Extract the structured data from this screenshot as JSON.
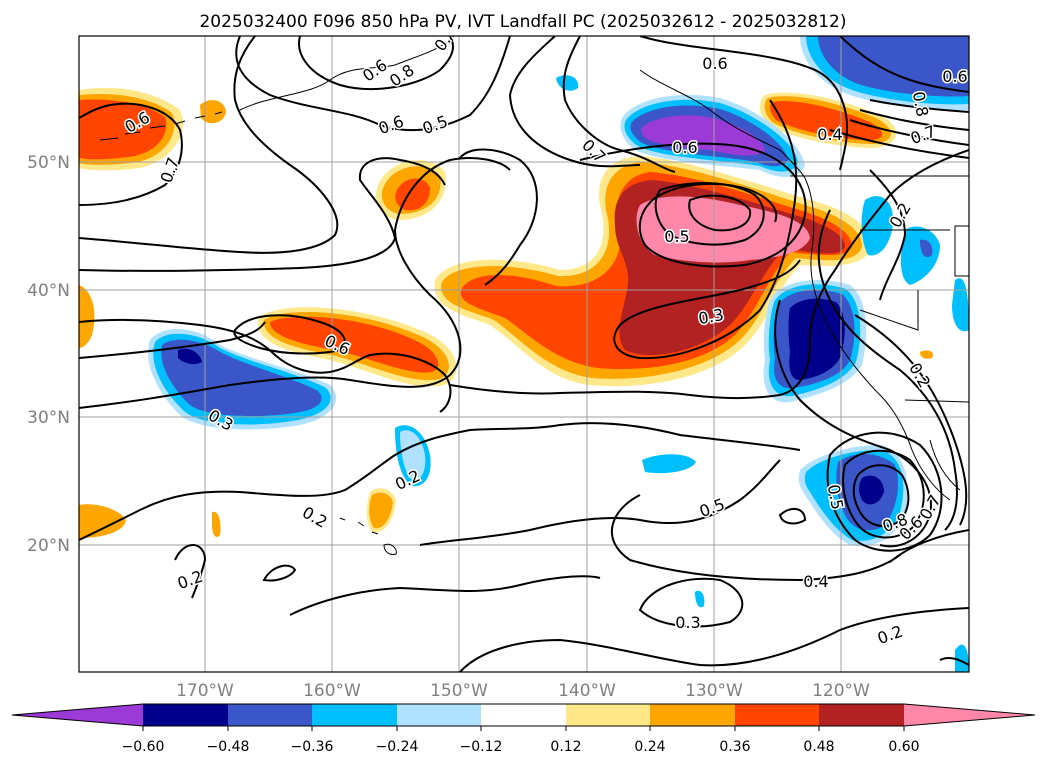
{
  "title": "2025032400 F096 850 hPa PV, IVT Landfall PC (2025032612 - 2025032812)",
  "map": {
    "lat_labels": [
      "50°N",
      "40°N",
      "30°N",
      "20°N"
    ],
    "lon_labels": [
      "170°W",
      "160°W",
      "150°W",
      "140°W",
      "130°W",
      "120°W"
    ],
    "gridlines": true
  },
  "colorbar": {
    "ticks": [
      "−0.60",
      "−0.48",
      "−0.36",
      "−0.24",
      "−0.12",
      "0.12",
      "0.24",
      "0.36",
      "0.48",
      "0.60"
    ],
    "colors": {
      "lt_neg060": "#9b3ad6",
      "neg060_neg048": "#00008b",
      "neg048_neg036": "#3a56c9",
      "neg036_neg024": "#00bfff",
      "neg024_neg012": "#b0e2ff",
      "neg012_012": "#ffffff",
      "p012_p024": "#ffe88a",
      "p024_p036": "#ffa500",
      "p036_p048": "#ff4500",
      "p048_p060": "#b22222",
      "gt_p060": "#ff88aa"
    }
  },
  "contour_labels": [
    "0.6",
    "0.7",
    "0.6",
    "0.5",
    "0.8",
    "0.6",
    "0.7",
    "0.6",
    "0.5",
    "0.6",
    "0.4",
    "0.7",
    "0.8",
    "0.6",
    "0.7",
    "0.2",
    "0.3",
    "0.6",
    "0.3",
    "0.2",
    "0.2",
    "0.2",
    "0.5",
    "0.5",
    "0.4",
    "0.3",
    "0.2",
    "0.2",
    "0.8",
    "0.6",
    "0.7"
  ]
}
